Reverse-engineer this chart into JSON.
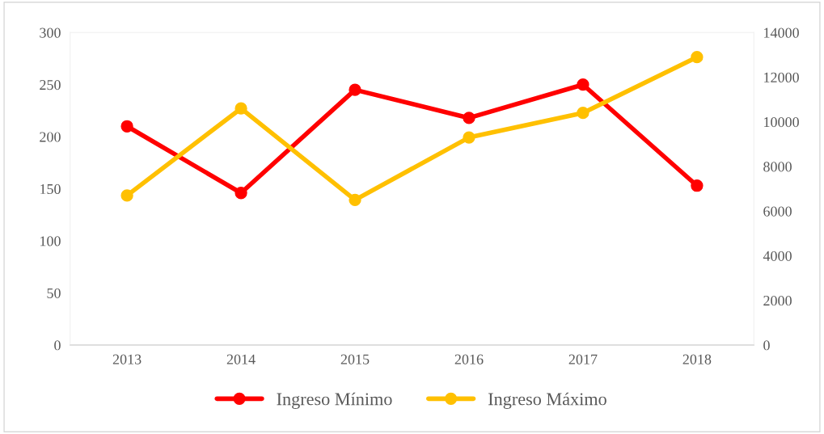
{
  "chart_data": {
    "type": "line",
    "categories": [
      "2013",
      "2014",
      "2015",
      "2016",
      "2017",
      "2018"
    ],
    "series": [
      {
        "name": "Ingreso Mínimo",
        "color": "#ff0000",
        "values": [
          210,
          146,
          245,
          218,
          250,
          153
        ]
      },
      {
        "name": "Ingreso Máximo",
        "color": "#ffc000",
        "axis": "y2",
        "values": [
          6700,
          10600,
          6500,
          9300,
          10400,
          12900
        ]
      }
    ],
    "ylim": [
      0,
      300
    ],
    "yticks": [
      0,
      50,
      100,
      150,
      200,
      250,
      300
    ],
    "y2lim": [
      0,
      14000
    ],
    "y2ticks": [
      0,
      2000,
      4000,
      6000,
      8000,
      10000,
      12000,
      14000
    ],
    "grid": false,
    "legend": "bottom",
    "marker": "circle",
    "line_style": "solid"
  }
}
